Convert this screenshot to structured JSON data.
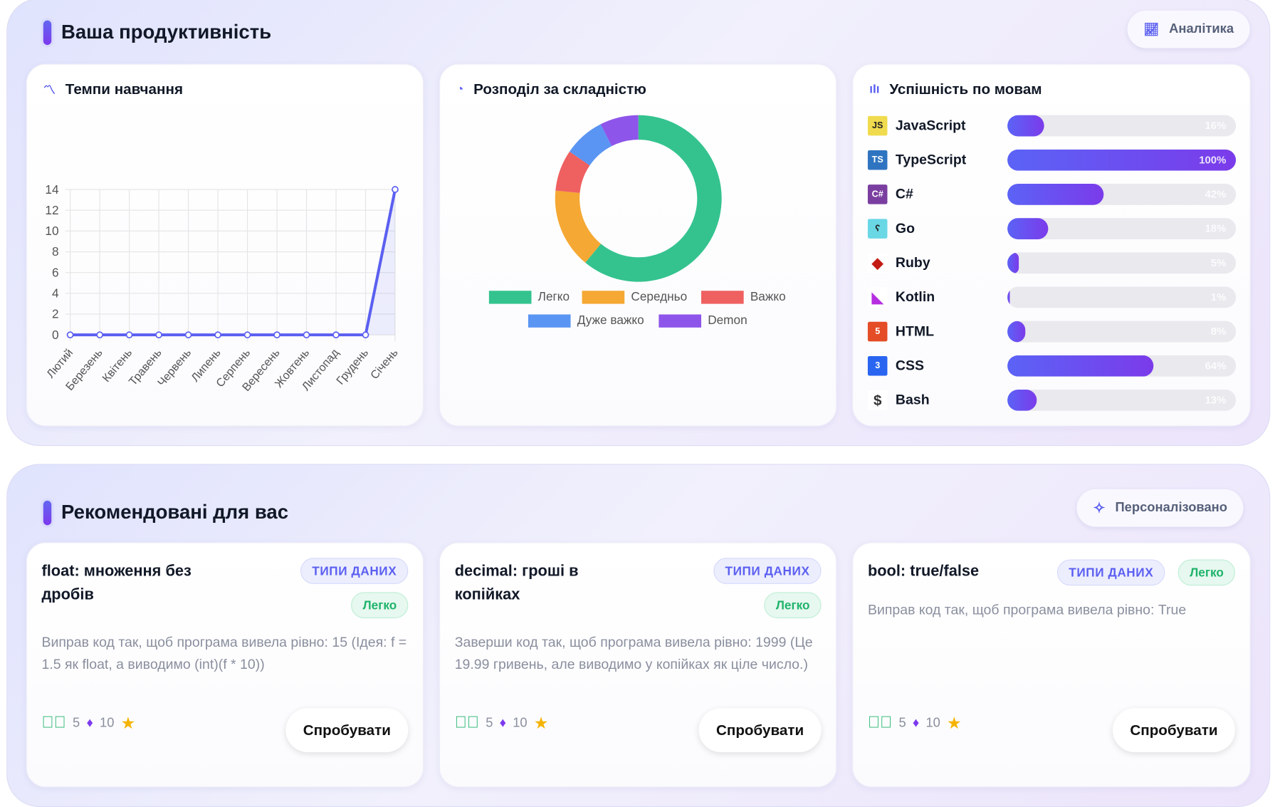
{
  "productivity": {
    "title": "Ваша продуктивність",
    "analytics_button": "Аналітика"
  },
  "pace_card": {
    "title": "Темпи навчання"
  },
  "difficulty_card": {
    "title": "Розподіл за складністю"
  },
  "languages_card": {
    "title": "Успішність по мовам",
    "items": [
      {
        "name": "JavaScript",
        "percent": 16,
        "label": "16%",
        "icon": "javascript-icon"
      },
      {
        "name": "TypeScript",
        "percent": 100,
        "label": "100%",
        "icon": "typescript-icon"
      },
      {
        "name": "C#",
        "percent": 42,
        "label": "42%",
        "icon": "csharp-icon"
      },
      {
        "name": "Go",
        "percent": 18,
        "label": "18%",
        "icon": "go-gopher-icon"
      },
      {
        "name": "Ruby",
        "percent": 5,
        "label": "5%",
        "icon": "ruby-icon"
      },
      {
        "name": "Kotlin",
        "percent": 1,
        "label": "1%",
        "icon": "kotlin-icon"
      },
      {
        "name": "HTML",
        "percent": 8,
        "label": "8%",
        "icon": "html5-icon"
      },
      {
        "name": "CSS",
        "percent": 64,
        "label": "64%",
        "icon": "css3-icon"
      },
      {
        "name": "Bash",
        "percent": 13,
        "label": "13%",
        "icon": "bash-icon"
      }
    ]
  },
  "chart_data": [
    {
      "type": "line",
      "title": "Темпи навчання",
      "categories": [
        "Лютий",
        "Березень",
        "Квітень",
        "Травень",
        "Червень",
        "Липень",
        "Серпень",
        "Вересень",
        "Жовтень",
        "Листопад",
        "Грудень",
        "Січень"
      ],
      "values": [
        0,
        0,
        0,
        0,
        0,
        0,
        0,
        0,
        0,
        0,
        0,
        14
      ],
      "ylim": [
        0,
        14
      ],
      "yticks": [
        "0",
        "2",
        "4",
        "6",
        "8",
        "10",
        "12",
        "14"
      ],
      "grid": true,
      "color": "#5b5ff0"
    },
    {
      "type": "pie",
      "title": "Розподіл за складністю",
      "donut": true,
      "legend": "bottom",
      "series": [
        {
          "name": "Легко",
          "value": 61,
          "color": "#34c38f"
        },
        {
          "name": "Середньо",
          "value": 15.5,
          "color": "#f5a833"
        },
        {
          "name": "Важко",
          "value": 8,
          "color": "#ef6060"
        },
        {
          "name": "Дуже важко",
          "value": 8,
          "color": "#5b95f3"
        },
        {
          "name": "Demon",
          "value": 7.5,
          "color": "#8e55ea"
        }
      ]
    }
  ],
  "recommended": {
    "title": "Рекомендовані для вас",
    "personalized_button": "Персоналізовано",
    "cards": [
      {
        "title": "float: множення без дробів",
        "category": "ТИПИ ДАНИХ",
        "difficulty": "Легко",
        "description": "Виправ код так, щоб програма вивела рівно: 15 (Ідея: f = 1.5 як float, а виводимо (int)(f * 10))",
        "solved": "5",
        "xp": "10",
        "button": "Спробувати"
      },
      {
        "title": "decimal: гроші в копійках",
        "category": "ТИПИ ДАНИХ",
        "difficulty": "Легко",
        "description": "Заверши код так, щоб програма вивела рівно: 1999 (Це 19.99 гривень, але виводимо у копійках як ціле число.)",
        "solved": "5",
        "xp": "10",
        "button": "Спробувати"
      },
      {
        "title": "bool: true/false",
        "category": "ТИПИ ДАНИХ",
        "difficulty": "Легко",
        "description": "Виправ код так, щоб програма вивела рівно: True",
        "solved": "5",
        "xp": "10",
        "button": "Спробувати"
      }
    ]
  }
}
